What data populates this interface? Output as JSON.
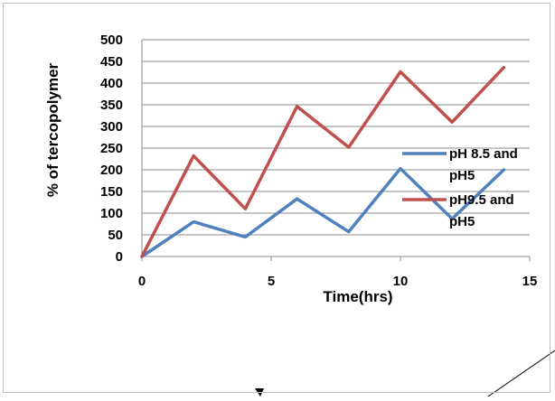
{
  "chart_data": {
    "type": "line",
    "title": "",
    "xlabel": "Time(hrs)",
    "ylabel": "% of tercopolymer",
    "xlim": [
      0,
      15
    ],
    "ylim": [
      0,
      500
    ],
    "x_ticks": [
      0,
      5,
      10,
      15
    ],
    "y_ticks": [
      0,
      50,
      100,
      150,
      200,
      250,
      300,
      350,
      400,
      450,
      500
    ],
    "grid": "horizontal",
    "legend_position": "right",
    "series": [
      {
        "name_lines": [
          "pH 8.5 and",
          "pH5"
        ],
        "color": "#4f81bd",
        "x": [
          0,
          2,
          4,
          6,
          8,
          10,
          12,
          14
        ],
        "y": [
          0,
          80,
          45,
          133,
          57,
          203,
          87,
          200
        ]
      },
      {
        "name_lines": [
          "pH9.5 and",
          "pH5"
        ],
        "color": "#c0504d",
        "x": [
          0,
          2,
          4,
          6,
          8,
          10,
          12,
          14
        ],
        "y": [
          0,
          232,
          110,
          346,
          252,
          426,
          310,
          436
        ]
      }
    ]
  }
}
